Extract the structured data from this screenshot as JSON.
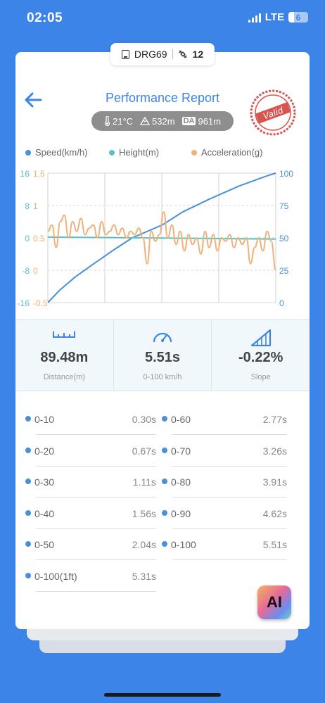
{
  "status": {
    "time": "02:05",
    "network": "LTE",
    "battery": "6"
  },
  "device_tag": {
    "device_name": "DRG69",
    "satellite_count": "12"
  },
  "header": {
    "title": "Performance Report",
    "temperature": "21°C",
    "altitude": "532m",
    "da_badge": "DA",
    "density_altitude": "961m",
    "stamp_text": "Valid"
  },
  "legend": [
    {
      "name": "Speed(km/h)",
      "color": "#4a90d9"
    },
    {
      "name": "Height(m)",
      "color": "#5bc0c8"
    },
    {
      "name": "Acceleration(g)",
      "color": "#f0b07a"
    }
  ],
  "chart_data": {
    "type": "line",
    "x_range": [
      0,
      5.51
    ],
    "axes": {
      "speed_right": {
        "ticks": [
          "100",
          "75",
          "50",
          "25",
          "0"
        ],
        "range": [
          0,
          100
        ],
        "color": "#4a90d9"
      },
      "height_left": {
        "ticks": [
          "16",
          "8",
          "0",
          "-8",
          "-16"
        ],
        "range": [
          -16,
          16
        ],
        "color": "#5bc0c8"
      },
      "accel_left": {
        "ticks": [
          "1.5",
          "1",
          "0.5",
          "0",
          "-0.5"
        ],
        "range": [
          -0.5,
          1.5
        ],
        "color": "#f0b07a"
      }
    },
    "series": [
      {
        "name": "Speed(km/h)",
        "color": "#4a90d9",
        "axis": "speed_right",
        "x": [
          0,
          0.3,
          0.67,
          1.11,
          1.56,
          2.04,
          2.77,
          3.26,
          3.91,
          4.62,
          5.31,
          5.51
        ],
        "y": [
          0,
          10,
          20,
          30,
          40,
          50,
          60,
          70,
          80,
          90,
          98,
          100
        ]
      },
      {
        "name": "Height(m)",
        "color": "#5bc0c8",
        "axis": "height_left",
        "x": [
          0,
          5.51
        ],
        "y": [
          0.2,
          -0.3
        ]
      },
      {
        "name": "Acceleration(g)",
        "color": "#f0b07a",
        "axis": "accel_left",
        "x": [
          0,
          0.1,
          0.2,
          0.3,
          0.4,
          0.5,
          0.6,
          0.7,
          0.8,
          0.9,
          1.0,
          1.1,
          1.2,
          1.3,
          1.4,
          1.5,
          1.6,
          1.7,
          1.8,
          1.9,
          2.0,
          2.1,
          2.2,
          2.3,
          2.4,
          2.5,
          2.6,
          2.7,
          2.8,
          2.9,
          3.0,
          3.1,
          3.2,
          3.3,
          3.4,
          3.5,
          3.6,
          3.7,
          3.8,
          3.9,
          4.0,
          4.1,
          4.2,
          4.3,
          4.4,
          4.5,
          4.6,
          4.7,
          4.8,
          4.9,
          5.0,
          5.1,
          5.2,
          5.3,
          5.4,
          5.51
        ],
        "y": [
          0.6,
          0.7,
          0.35,
          0.75,
          0.85,
          0.5,
          0.75,
          0.6,
          0.8,
          0.55,
          0.65,
          0.7,
          0.5,
          0.75,
          0.55,
          0.6,
          0.7,
          0.55,
          0.65,
          0.5,
          0.6,
          0.55,
          0.65,
          0.5,
          0.1,
          0.6,
          0.45,
          0.55,
          0.9,
          0.5,
          0.7,
          0.4,
          0.6,
          0.3,
          0.55,
          0.4,
          0.5,
          0.25,
          0.6,
          0.35,
          0.55,
          0.3,
          0.5,
          0.45,
          0.55,
          0.35,
          0.5,
          0.4,
          0.5,
          0.1,
          0.35,
          0.5,
          0.3,
          0.6,
          0.45,
          0.0
        ]
      }
    ]
  },
  "stats": [
    {
      "value": "89.48m",
      "label": "Distance(m)",
      "icon": "ruler-icon"
    },
    {
      "value": "5.51s",
      "label": "0-100 km/h",
      "icon": "speedometer-icon"
    },
    {
      "value": "-0.22%",
      "label": "Slope",
      "icon": "slope-icon"
    }
  ],
  "splits": [
    {
      "label": "0-10",
      "value": "0.30s"
    },
    {
      "label": "0-60",
      "value": "2.77s"
    },
    {
      "label": "0-20",
      "value": "0.67s"
    },
    {
      "label": "0-70",
      "value": "3.26s"
    },
    {
      "label": "0-30",
      "value": "1.11s"
    },
    {
      "label": "0-80",
      "value": "3.91s"
    },
    {
      "label": "0-40",
      "value": "1.56s"
    },
    {
      "label": "0-90",
      "value": "4.62s"
    },
    {
      "label": "0-50",
      "value": "2.04s"
    },
    {
      "label": "0-100",
      "value": "5.51s"
    },
    {
      "label": "0-100(1ft)",
      "value": "5.31s"
    }
  ],
  "ai_button": {
    "label": "AI"
  }
}
